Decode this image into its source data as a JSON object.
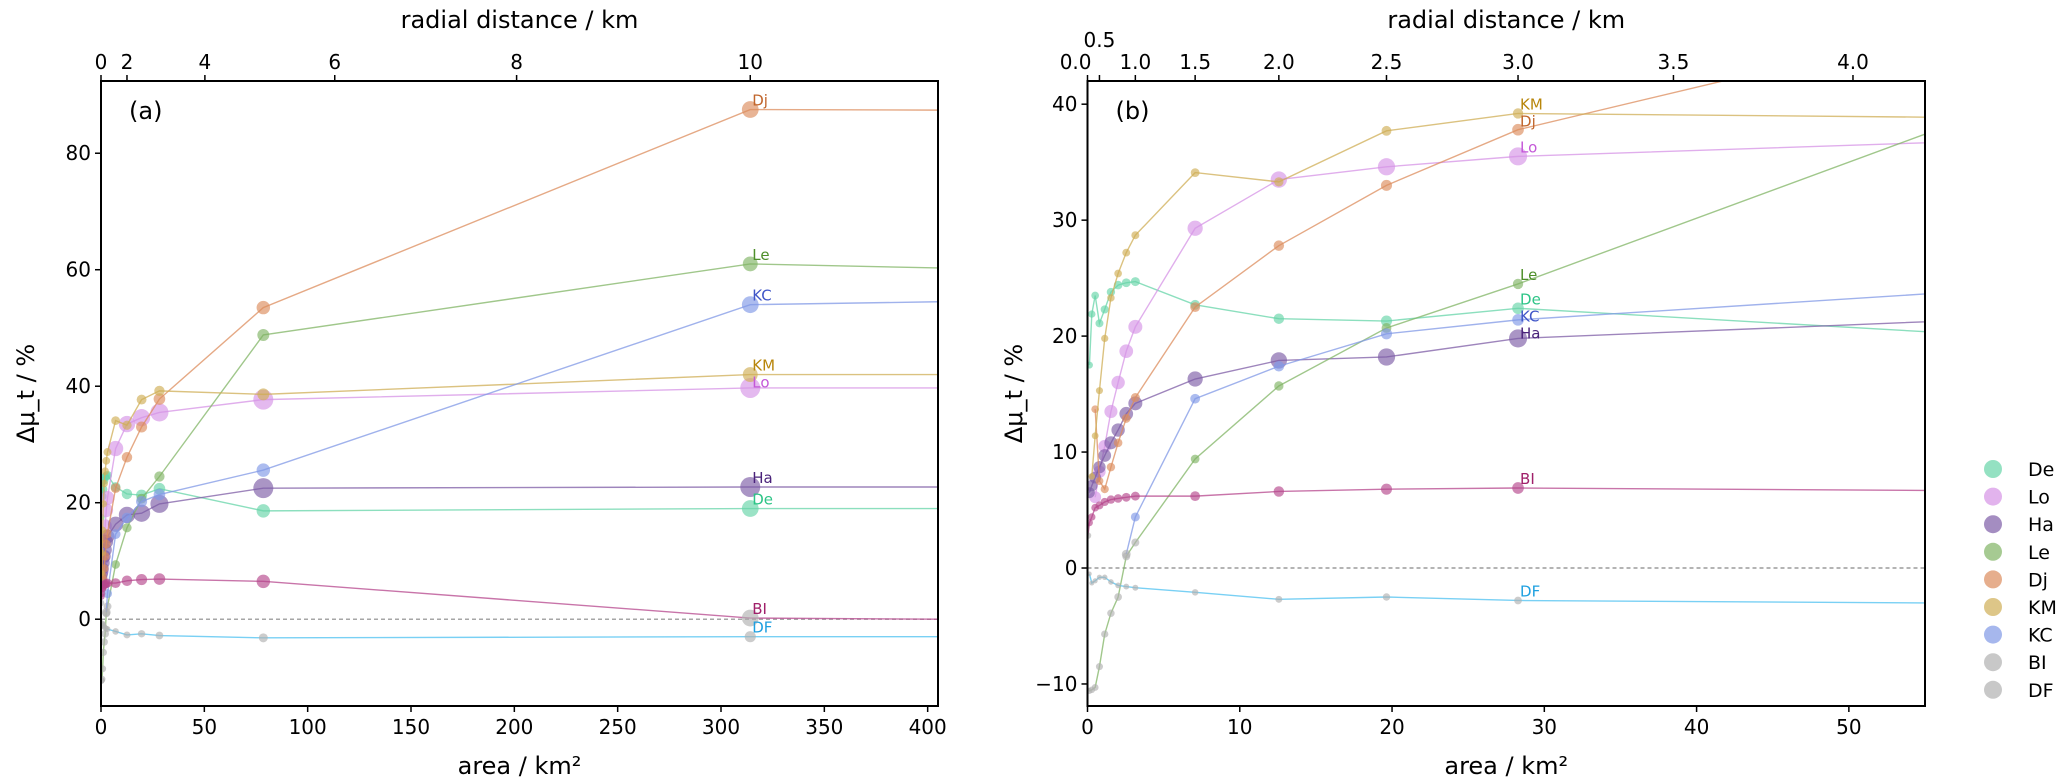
{
  "chart_data": [
    {
      "type": "line",
      "panel_label": "(a)",
      "xlabel": "area / km²",
      "ylabel": "Δμ_t / %",
      "top_xlabel": "radial distance / km",
      "xlim": [
        0,
        405
      ],
      "ylim": [
        -14.9,
        92.4
      ],
      "xticks": [
        0,
        50,
        100,
        150,
        200,
        250,
        300,
        350,
        400
      ],
      "yticks": [
        0,
        20,
        40,
        60,
        80
      ],
      "top_ticks": [
        {
          "label": "0",
          "area": 0
        },
        {
          "label": "2",
          "area": 12.57
        },
        {
          "label": "4",
          "area": 50.27
        },
        {
          "label": "6",
          "area": 113.1
        },
        {
          "label": "8",
          "area": 201.1
        },
        {
          "label": "10",
          "area": 314.16
        }
      ],
      "label_at_area": 314.16,
      "reference_line_y": 0
    },
    {
      "type": "line",
      "panel_label": "(b)",
      "xlabel": "area / km²",
      "ylabel": "Δμ_t / %",
      "top_xlabel": "radial distance / km",
      "xlim": [
        0,
        55
      ],
      "ylim": [
        -11.9,
        42.0
      ],
      "xticks": [
        0,
        10,
        20,
        30,
        40,
        50
      ],
      "yticks": [
        -10,
        0,
        10,
        20,
        30,
        40
      ],
      "top_ticks": [
        {
          "label": "0.0",
          "area": 0
        },
        {
          "label": "0.5",
          "area": 0.785
        },
        {
          "label": "1.0",
          "area": 3.142
        },
        {
          "label": "1.5",
          "area": 7.069
        },
        {
          "label": "2.0",
          "area": 12.566
        },
        {
          "label": "2.5",
          "area": 19.635
        },
        {
          "label": "3.0",
          "area": 28.274
        },
        {
          "label": "3.5",
          "area": 38.48
        },
        {
          "label": "4.0",
          "area": 50.27
        }
      ],
      "label_at_area": 28.274,
      "reference_line_y": 0
    }
  ],
  "shared": {
    "radial_distance_km": [
      0.1,
      0.2,
      0.3,
      0.4,
      0.5,
      0.6,
      0.7,
      0.8,
      0.9,
      1.0,
      1.5,
      2.0,
      2.5,
      3.0,
      5.0,
      10.0
    ],
    "area_km2": [
      0.031,
      0.126,
      0.283,
      0.503,
      0.785,
      1.131,
      1.539,
      2.011,
      2.545,
      3.142,
      7.069,
      12.566,
      19.635,
      28.274,
      78.54,
      314.16
    ],
    "line_end_area": 405,
    "insignificant_color": "#b0b0b0",
    "series": [
      {
        "name": "De",
        "color": "#66d4a8",
        "text_color": "#2cc486",
        "values": [
          null,
          17.5,
          21.9,
          23.5,
          21.1,
          22.3,
          23.8,
          24.4,
          24.6,
          24.7,
          22.7,
          21.5,
          21.3,
          22.4,
          18.6,
          19.0
        ],
        "line_end_value": 19.0,
        "grey": []
      },
      {
        "name": "Lo",
        "color": "#d693e6",
        "text_color": "#c458d8",
        "values": [
          null,
          null,
          null,
          6.1,
          8.3,
          10.5,
          13.5,
          16.0,
          18.7,
          20.8,
          29.3,
          33.5,
          34.6,
          35.5,
          37.7,
          39.7
        ],
        "line_end_value": 39.7,
        "grey": []
      },
      {
        "name": "Ha",
        "color": "#7d5ca6",
        "text_color": "#4a237a",
        "values": [
          null,
          6.5,
          7.1,
          7.8,
          8.7,
          9.7,
          10.8,
          11.9,
          13.3,
          14.2,
          16.3,
          17.9,
          18.2,
          19.8,
          22.5,
          22.7
        ],
        "line_end_value": 22.7,
        "grey": []
      },
      {
        "name": "Le",
        "color": "#80b464",
        "text_color": "#4e8f2a",
        "values": [
          null,
          -10.6,
          -10.5,
          -10.3,
          -8.5,
          -5.7,
          -3.9,
          -2.5,
          1.0,
          2.2,
          9.4,
          15.7,
          20.7,
          24.5,
          48.8,
          61.0
        ],
        "line_end_value": 60.3,
        "grey": [
          1,
          2,
          3,
          4,
          5,
          6,
          7,
          8,
          9
        ]
      },
      {
        "name": "Dj",
        "color": "#dc8c5c",
        "text_color": "#c0652b",
        "values": [
          null,
          null,
          null,
          13.7,
          7.5,
          6.8,
          8.7,
          10.8,
          12.9,
          14.7,
          22.5,
          27.8,
          33.0,
          37.8,
          53.5,
          87.5
        ],
        "line_end_value": 87.4,
        "grey": []
      },
      {
        "name": "KM",
        "color": "#cfae55",
        "text_color": "#b8860b",
        "values": [
          null,
          null,
          7.9,
          11.4,
          15.3,
          19.8,
          23.3,
          25.4,
          27.2,
          28.7,
          34.1,
          33.3,
          37.7,
          39.2,
          38.6,
          42.0
        ],
        "line_end_value": 42.0,
        "grey": []
      },
      {
        "name": "KC",
        "color": "#8098e6",
        "text_color": "#4056c8",
        "values": [
          null,
          null,
          null,
          null,
          null,
          null,
          null,
          null,
          1.2,
          4.4,
          14.6,
          17.4,
          20.2,
          21.4,
          25.6,
          54.0
        ],
        "line_end_value": 54.5,
        "grey": [
          8
        ]
      },
      {
        "name": "BI",
        "color": "#b5468c",
        "text_color": "#a0206a",
        "values": [
          2.8,
          3.9,
          4.4,
          5.2,
          5.4,
          5.7,
          5.9,
          6.0,
          6.1,
          6.2,
          6.2,
          6.6,
          6.8,
          6.9,
          6.5,
          0.2
        ],
        "line_end_value": 0.0,
        "grey": [
          0,
          15
        ],
        "legend_grey": true
      },
      {
        "name": "DF",
        "color": "#4cc0f0",
        "text_color": "#1ea0e0",
        "values": [
          null,
          -0.5,
          -1.3,
          -1.1,
          -0.8,
          -0.8,
          -1.2,
          -1.5,
          -1.6,
          -1.7,
          -2.1,
          -2.7,
          -2.5,
          -2.8,
          -3.2,
          -3.0
        ],
        "line_end_value": -3.0,
        "grey": [
          1,
          2,
          3,
          4,
          5,
          6,
          7,
          8,
          9,
          10,
          11,
          12,
          13,
          14,
          15
        ],
        "legend_grey": true
      }
    ]
  }
}
